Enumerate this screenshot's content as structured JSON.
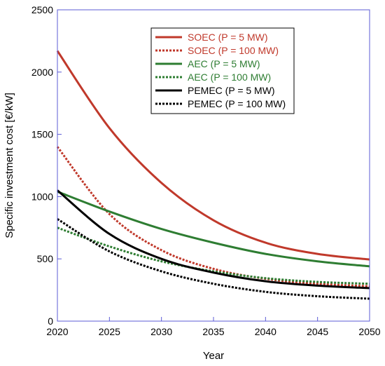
{
  "chart_data": {
    "type": "line",
    "xlabel": "Year",
    "ylabel": "Specific investment cost [€/kW]",
    "xlim": [
      2020,
      2050
    ],
    "ylim": [
      0,
      2500
    ],
    "xticks": [
      2020,
      2025,
      2030,
      2035,
      2040,
      2045,
      2050
    ],
    "yticks": [
      0,
      500,
      1000,
      1500,
      2000,
      2500
    ],
    "legend_position": "top-right",
    "grid": false,
    "series": [
      {
        "name": "SOEC (P = 5 MW)",
        "color": "#c0392b",
        "style": "solid",
        "x": [
          2020,
          2025,
          2030,
          2035,
          2040,
          2045,
          2050
        ],
        "y": [
          2170,
          1550,
          1110,
          810,
          630,
          540,
          495
        ]
      },
      {
        "name": "SOEC (P = 100 MW)",
        "color": "#c0392b",
        "style": "dotted",
        "x": [
          2020,
          2025,
          2030,
          2035,
          2040,
          2045,
          2050
        ],
        "y": [
          1400,
          860,
          570,
          420,
          340,
          300,
          280
        ]
      },
      {
        "name": "AEC (P = 5 MW)",
        "color": "#2e7d32",
        "style": "solid",
        "x": [
          2020,
          2025,
          2030,
          2035,
          2040,
          2045,
          2050
        ],
        "y": [
          1040,
          880,
          740,
          630,
          540,
          480,
          440
        ]
      },
      {
        "name": "AEC (P = 100 MW)",
        "color": "#2e7d32",
        "style": "dotted",
        "x": [
          2020,
          2025,
          2030,
          2035,
          2040,
          2045,
          2050
        ],
        "y": [
          750,
          600,
          480,
          400,
          345,
          315,
          300
        ]
      },
      {
        "name": "PEMEC (P = 5 MW)",
        "color": "#000000",
        "style": "solid",
        "x": [
          2020,
          2025,
          2030,
          2035,
          2040,
          2045,
          2050
        ],
        "y": [
          1050,
          700,
          500,
          390,
          320,
          285,
          265
        ]
      },
      {
        "name": "PEMEC (P = 100 MW)",
        "color": "#000000",
        "style": "dotted",
        "x": [
          2020,
          2025,
          2030,
          2035,
          2040,
          2045,
          2050
        ],
        "y": [
          820,
          560,
          400,
          300,
          235,
          200,
          180
        ]
      }
    ]
  }
}
